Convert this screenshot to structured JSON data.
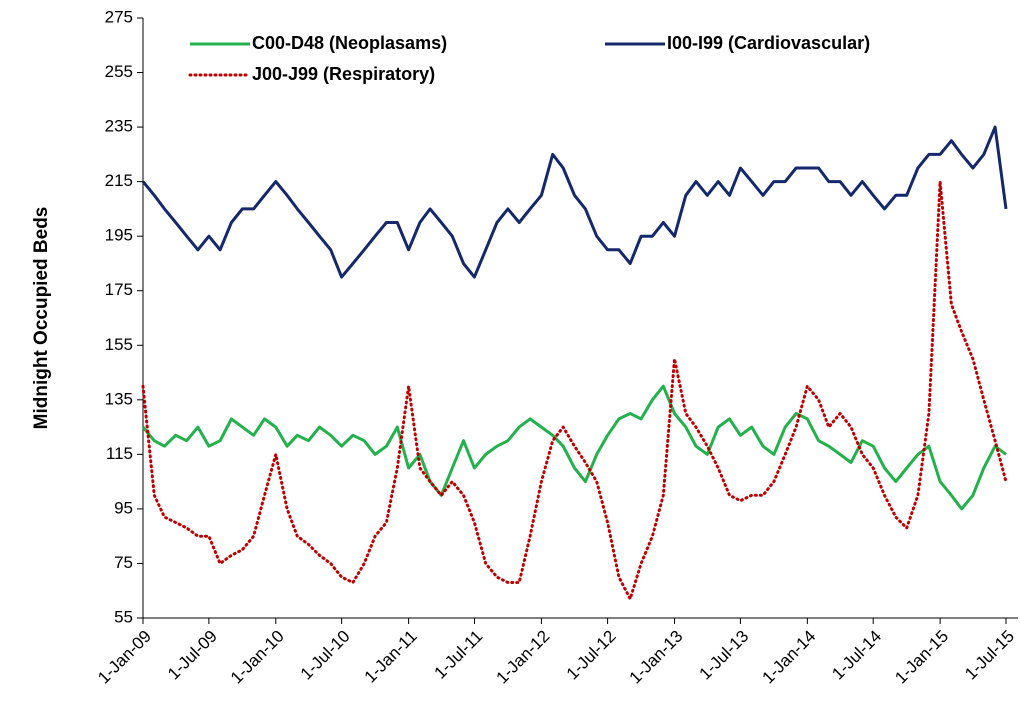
{
  "chart_data": {
    "type": "line",
    "y_label": "Midnight Occupied Beds",
    "x": [
      "2009-01-01",
      "2009-02-01",
      "2009-03-01",
      "2009-04-01",
      "2009-05-01",
      "2009-06-01",
      "2009-07-01",
      "2009-08-01",
      "2009-09-01",
      "2009-10-01",
      "2009-11-01",
      "2009-12-01",
      "2010-01-01",
      "2010-02-01",
      "2010-03-01",
      "2010-04-01",
      "2010-05-01",
      "2010-06-01",
      "2010-07-01",
      "2010-08-01",
      "2010-09-01",
      "2010-10-01",
      "2010-11-01",
      "2010-12-01",
      "2011-01-01",
      "2011-02-01",
      "2011-03-01",
      "2011-04-01",
      "2011-05-01",
      "2011-06-01",
      "2011-07-01",
      "2011-08-01",
      "2011-09-01",
      "2011-10-01",
      "2011-11-01",
      "2011-12-01",
      "2012-01-01",
      "2012-02-01",
      "2012-03-01",
      "2012-04-01",
      "2012-05-01",
      "2012-06-01",
      "2012-07-01",
      "2012-08-01",
      "2012-09-01",
      "2012-10-01",
      "2012-11-01",
      "2012-12-01",
      "2013-01-01",
      "2013-02-01",
      "2013-03-01",
      "2013-04-01",
      "2013-05-01",
      "2013-06-01",
      "2013-07-01",
      "2013-08-01",
      "2013-09-01",
      "2013-10-01",
      "2013-11-01",
      "2013-12-01",
      "2014-01-01",
      "2014-02-01",
      "2014-03-01",
      "2014-04-01",
      "2014-05-01",
      "2014-06-01",
      "2014-07-01",
      "2014-08-01",
      "2014-09-01",
      "2014-10-01",
      "2014-11-01",
      "2014-12-01",
      "2015-01-01",
      "2015-02-01",
      "2015-03-01",
      "2015-04-01",
      "2015-05-01",
      "2015-06-01",
      "2015-07-01"
    ],
    "series": [
      {
        "name": "C00-D48 (Neoplasams)",
        "color": "#22b14c",
        "line_style": "solid",
        "values": [
          125,
          120,
          118,
          122,
          120,
          125,
          118,
          120,
          128,
          125,
          122,
          128,
          125,
          118,
          122,
          120,
          125,
          122,
          118,
          122,
          120,
          115,
          118,
          125,
          110,
          115,
          105,
          100,
          110,
          120,
          110,
          115,
          118,
          120,
          125,
          128,
          125,
          122,
          118,
          110,
          105,
          115,
          122,
          128,
          130,
          128,
          135,
          140,
          130,
          125,
          118,
          115,
          125,
          128,
          122,
          125,
          118,
          115,
          125,
          130,
          128,
          120,
          118,
          115,
          112,
          120,
          118,
          110,
          105,
          110,
          115,
          118,
          105,
          100,
          95,
          100,
          110,
          118,
          115
        ]
      },
      {
        "name": "I00-I99 (Cardiovascular)",
        "color": "#14286b",
        "line_style": "solid",
        "values": [
          215,
          210,
          205,
          200,
          195,
          190,
          195,
          190,
          200,
          205,
          205,
          210,
          215,
          210,
          205,
          200,
          195,
          190,
          180,
          185,
          190,
          195,
          200,
          200,
          190,
          200,
          205,
          200,
          195,
          185,
          180,
          190,
          200,
          205,
          200,
          205,
          210,
          225,
          220,
          210,
          205,
          195,
          190,
          190,
          185,
          195,
          195,
          200,
          195,
          210,
          215,
          210,
          215,
          210,
          220,
          215,
          210,
          215,
          215,
          220,
          220,
          220,
          215,
          215,
          210,
          215,
          210,
          205,
          210,
          210,
          220,
          225,
          225,
          230,
          225,
          220,
          225,
          235,
          205
        ]
      },
      {
        "name": "J00-J99 (Respiratory)",
        "color": "#c00000",
        "line_style": "dotted",
        "values": [
          140,
          100,
          92,
          90,
          88,
          85,
          85,
          75,
          78,
          80,
          85,
          100,
          115,
          95,
          85,
          82,
          78,
          75,
          70,
          68,
          75,
          85,
          90,
          110,
          140,
          110,
          105,
          100,
          105,
          100,
          90,
          75,
          70,
          68,
          68,
          85,
          105,
          120,
          125,
          118,
          112,
          105,
          90,
          70,
          62,
          75,
          85,
          100,
          150,
          130,
          125,
          118,
          110,
          100,
          98,
          100,
          100,
          105,
          115,
          125,
          140,
          135,
          125,
          130,
          125,
          115,
          110,
          100,
          92,
          88,
          100,
          130,
          215,
          170,
          160,
          150,
          135,
          120,
          105
        ]
      }
    ],
    "legend": "top",
    "xlim": [
      "2009-01-01",
      "2015-08-03"
    ],
    "xticks": [
      {
        "value": "2009-01-01",
        "label": "1-Jan-09"
      },
      {
        "value": "2009-07-01",
        "label": "1-Jul-09"
      },
      {
        "value": "2010-01-01",
        "label": "1-Jan-10"
      },
      {
        "value": "2010-07-01",
        "label": "1-Jul-10"
      },
      {
        "value": "2011-01-01",
        "label": "1-Jan-11"
      },
      {
        "value": "2011-07-01",
        "label": "1-Jul-11"
      },
      {
        "value": "2012-01-01",
        "label": "1-Jan-12"
      },
      {
        "value": "2012-07-01",
        "label": "1-Jul-12"
      },
      {
        "value": "2013-01-01",
        "label": "1-Jan-13"
      },
      {
        "value": "2013-07-01",
        "label": "1-Jul-13"
      },
      {
        "value": "2014-01-01",
        "label": "1-Jan-14"
      },
      {
        "value": "2014-07-01",
        "label": "1-Jul-14"
      },
      {
        "value": "2015-01-01",
        "label": "1-Jan-15"
      },
      {
        "value": "2015-07-01",
        "label": "1-Jul-15"
      }
    ],
    "ylim": [
      55,
      275
    ],
    "yticks": [
      55,
      75,
      95,
      115,
      135,
      155,
      175,
      195,
      215,
      235,
      255,
      275
    ],
    "grid": false
  }
}
